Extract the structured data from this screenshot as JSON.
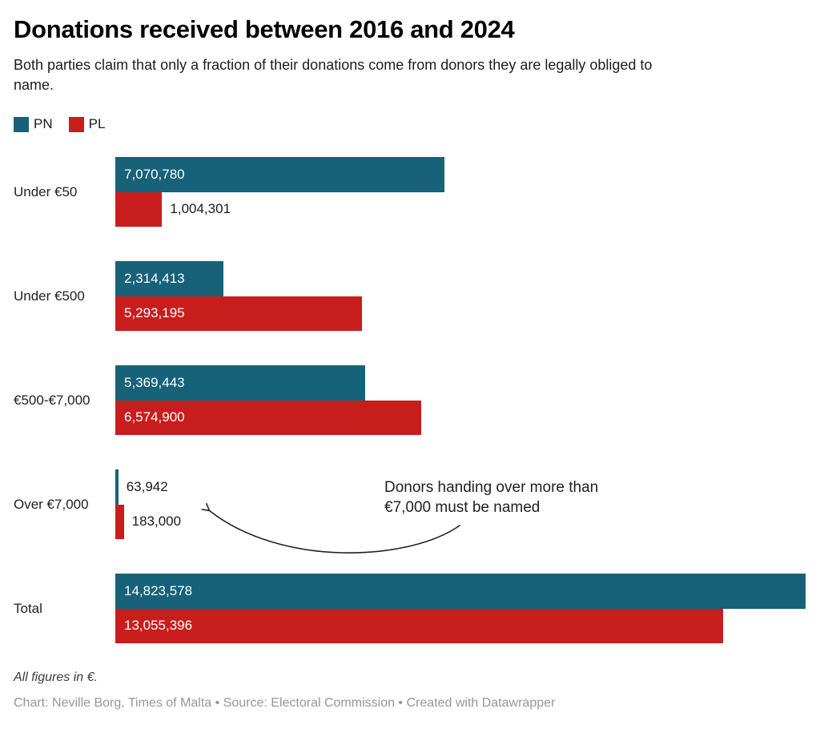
{
  "chart_data": {
    "type": "bar",
    "title": "Donations received between 2016 and 2024",
    "subtitle": "Both parties claim that only a fraction of their donations come from donors they are legally obliged to name.",
    "categories": [
      "Under €50",
      "Under €500",
      "€500-€7,000",
      "Over €7,000",
      "Total"
    ],
    "max_value": 14823578,
    "xlabel": "",
    "ylabel": "",
    "layout": {
      "orientation": "horizontal",
      "grid": false,
      "legend_position": "top-left",
      "value_labels": "on-bars"
    },
    "series": [
      {
        "name": "PN",
        "color": "#176179",
        "values": [
          7070780,
          2314413,
          5369443,
          63942,
          14823578
        ],
        "labels": [
          "7,070,780",
          "2,314,413",
          "5,369,443",
          "63,942",
          "14,823,578"
        ],
        "label_positions": [
          "inside",
          "inside",
          "inside",
          "outside",
          "inside"
        ]
      },
      {
        "name": "PL",
        "color": "#c71e1d",
        "values": [
          1004301,
          5293195,
          6574900,
          183000,
          13055396
        ],
        "labels": [
          "1,004,301",
          "5,293,195",
          "6,574,900",
          "183,000",
          "13,055,396"
        ],
        "label_positions": [
          "outside",
          "inside",
          "inside",
          "outside",
          "inside"
        ]
      }
    ],
    "annotation": {
      "line1": "Donors handing over more than",
      "line2": "€7,000 must be named"
    },
    "footnote": "All figures in €.",
    "byline": "Chart: Neville Borg, Times of Malta • Source: Electoral Commission • Created with Datawrapper"
  }
}
